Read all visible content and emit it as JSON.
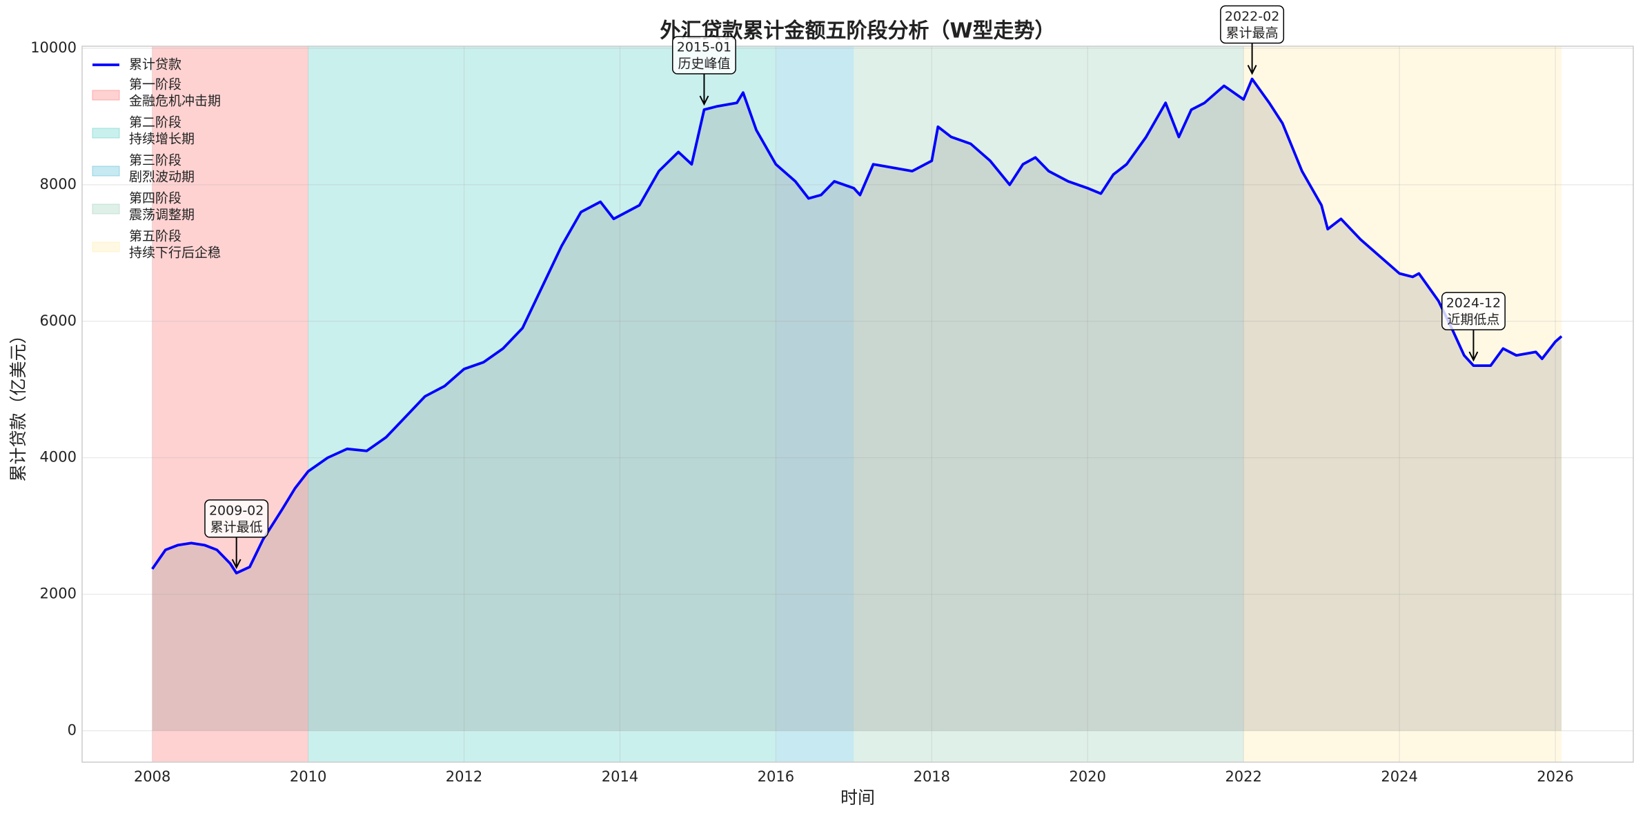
{
  "chart_data": {
    "type": "line",
    "title": "外汇贷款累计金额五阶段分析（W型走势）",
    "x_label": "时间",
    "y_label": "累计贷款（亿美元）",
    "xlim": [
      2007.1,
      2027.0
    ],
    "xticks": [
      2008,
      2010,
      2012,
      2014,
      2016,
      2018,
      2020,
      2022,
      2024,
      2026
    ],
    "ylim": [
      -460,
      10030
    ],
    "yticks": [
      0,
      2000,
      4000,
      6000,
      8000,
      10000
    ],
    "grid": true,
    "legend_loc": "upper left",
    "x": [
      2008.0,
      2008.17,
      2008.33,
      2008.5,
      2008.67,
      2008.83,
      2009.0,
      2009.08,
      2009.25,
      2009.42,
      2009.67,
      2009.83,
      2010.0,
      2010.25,
      2010.5,
      2010.75,
      2011.0,
      2011.25,
      2011.5,
      2011.75,
      2012.0,
      2012.25,
      2012.5,
      2012.75,
      2013.0,
      2013.25,
      2013.5,
      2013.75,
      2013.92,
      2014.25,
      2014.5,
      2014.75,
      2014.92,
      2015.08,
      2015.25,
      2015.5,
      2015.58,
      2015.75,
      2016.0,
      2016.25,
      2016.42,
      2016.58,
      2016.75,
      2017.0,
      2017.08,
      2017.25,
      2017.5,
      2017.75,
      2018.0,
      2018.08,
      2018.25,
      2018.5,
      2018.75,
      2019.0,
      2019.17,
      2019.33,
      2019.5,
      2019.75,
      2020.0,
      2020.17,
      2020.33,
      2020.5,
      2020.75,
      2021.0,
      2021.17,
      2021.33,
      2021.5,
      2021.75,
      2022.0,
      2022.11,
      2022.33,
      2022.5,
      2022.75,
      2023.0,
      2023.08,
      2023.25,
      2023.5,
      2023.75,
      2024.0,
      2024.17,
      2024.25,
      2024.5,
      2024.67,
      2024.83,
      2024.95,
      2025.17,
      2025.33,
      2025.5,
      2025.75,
      2025.83,
      2026.0,
      2026.08
    ],
    "series": [
      {
        "name": "累计贷款",
        "color": "#0000ff",
        "values": [
          2370,
          2650,
          2720,
          2750,
          2720,
          2650,
          2450,
          2310,
          2400,
          2800,
          3250,
          3550,
          3800,
          4000,
          4130,
          4100,
          4300,
          4600,
          4900,
          5050,
          5300,
          5400,
          5600,
          5900,
          6500,
          7100,
          7600,
          7750,
          7500,
          7700,
          8200,
          8480,
          8300,
          9100,
          9150,
          9200,
          9350,
          8800,
          8300,
          8050,
          7800,
          7850,
          8050,
          7950,
          7850,
          8300,
          8250,
          8200,
          8350,
          8850,
          8700,
          8600,
          8350,
          8000,
          8300,
          8400,
          8200,
          8050,
          7950,
          7870,
          8150,
          8300,
          8700,
          9200,
          8700,
          9100,
          9200,
          9450,
          9250,
          9550,
          9200,
          8900,
          8200,
          7700,
          7350,
          7500,
          7200,
          6950,
          6700,
          6650,
          6700,
          6300,
          5900,
          5500,
          5350,
          5350,
          5600,
          5500,
          5550,
          5450,
          5700,
          5780
        ]
      }
    ],
    "fill_color": "#808080",
    "fill_alpha": 0.22,
    "phases": [
      {
        "name": "第一阶段",
        "desc": "金融危机冲击期",
        "x0": 2008.0,
        "x1": 2010.0,
        "color": "#ff6b6b"
      },
      {
        "name": "第二阶段",
        "desc": "持续增长期",
        "x0": 2010.0,
        "x1": 2016.0,
        "color": "#4ecdc4"
      },
      {
        "name": "第三阶段",
        "desc": "剧烈波动期",
        "x0": 2016.0,
        "x1": 2017.0,
        "color": "#45b7d1"
      },
      {
        "name": "第四阶段",
        "desc": "震荡调整期",
        "x0": 2017.0,
        "x1": 2022.0,
        "color": "#96ceb4"
      },
      {
        "name": "第五阶段",
        "desc": "持续下行后企稳",
        "x0": 2022.0,
        "x1": 2026.08,
        "color": "#ffeaa7"
      }
    ],
    "phase_alpha": 0.3,
    "annotations": [
      {
        "date": "2009-02",
        "text": "累计最低",
        "x": 2009.08,
        "y": 2310
      },
      {
        "date": "2015-01",
        "text": "历史峰值",
        "x": 2015.08,
        "y": 9100
      },
      {
        "date": "2022-02",
        "text": "累计最高",
        "x": 2022.11,
        "y": 9550
      },
      {
        "date": "2024-12",
        "text": "近期低点",
        "x": 2024.95,
        "y": 5350
      }
    ]
  }
}
